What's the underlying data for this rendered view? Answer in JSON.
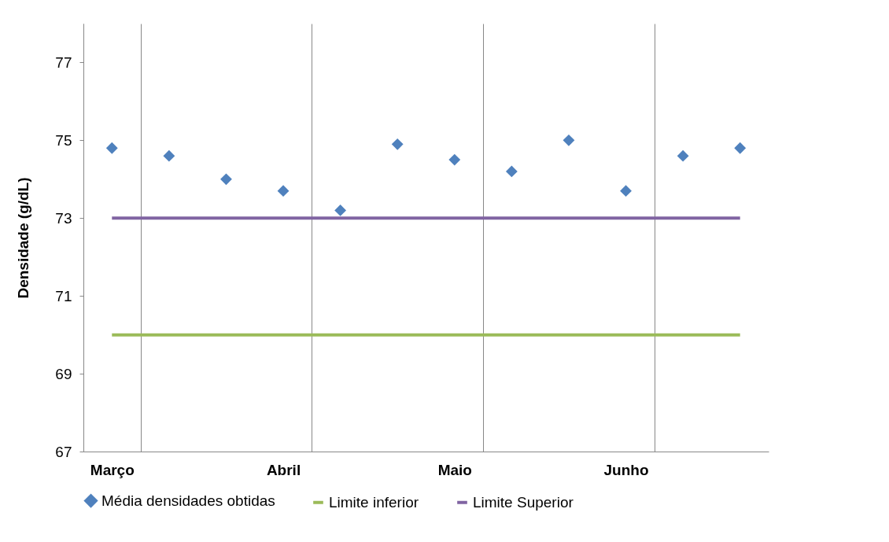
{
  "chart_data": {
    "type": "scatter",
    "ylabel": "Densidade (g/dL)",
    "categories": [
      "Março",
      null,
      null,
      "Abril",
      null,
      null,
      "Maio",
      null,
      null,
      "Junho",
      null,
      null
    ],
    "series": [
      {
        "name": "Média densidades obtidas",
        "color": "#4f81bd",
        "marker": "diamond",
        "values": [
          74.8,
          74.6,
          74.0,
          73.7,
          73.2,
          74.9,
          74.5,
          74.2,
          75.0,
          73.7,
          74.6,
          74.8
        ]
      },
      {
        "name": "Limite inferior",
        "type": "line",
        "color": "#9bbb59",
        "marker": "none",
        "values": [
          70,
          70,
          70,
          70,
          70,
          70,
          70,
          70,
          70,
          70,
          70,
          70
        ]
      },
      {
        "name": "Limite Superior",
        "type": "line",
        "color": "#8064a2",
        "marker": "none",
        "values": [
          73,
          73,
          73,
          73,
          73,
          73,
          73,
          73,
          73,
          73,
          73,
          73
        ]
      }
    ],
    "ylim": [
      67,
      78
    ],
    "yticks": [
      67,
      69,
      71,
      73,
      75,
      77
    ],
    "grid": "x",
    "legend": "bottom"
  }
}
